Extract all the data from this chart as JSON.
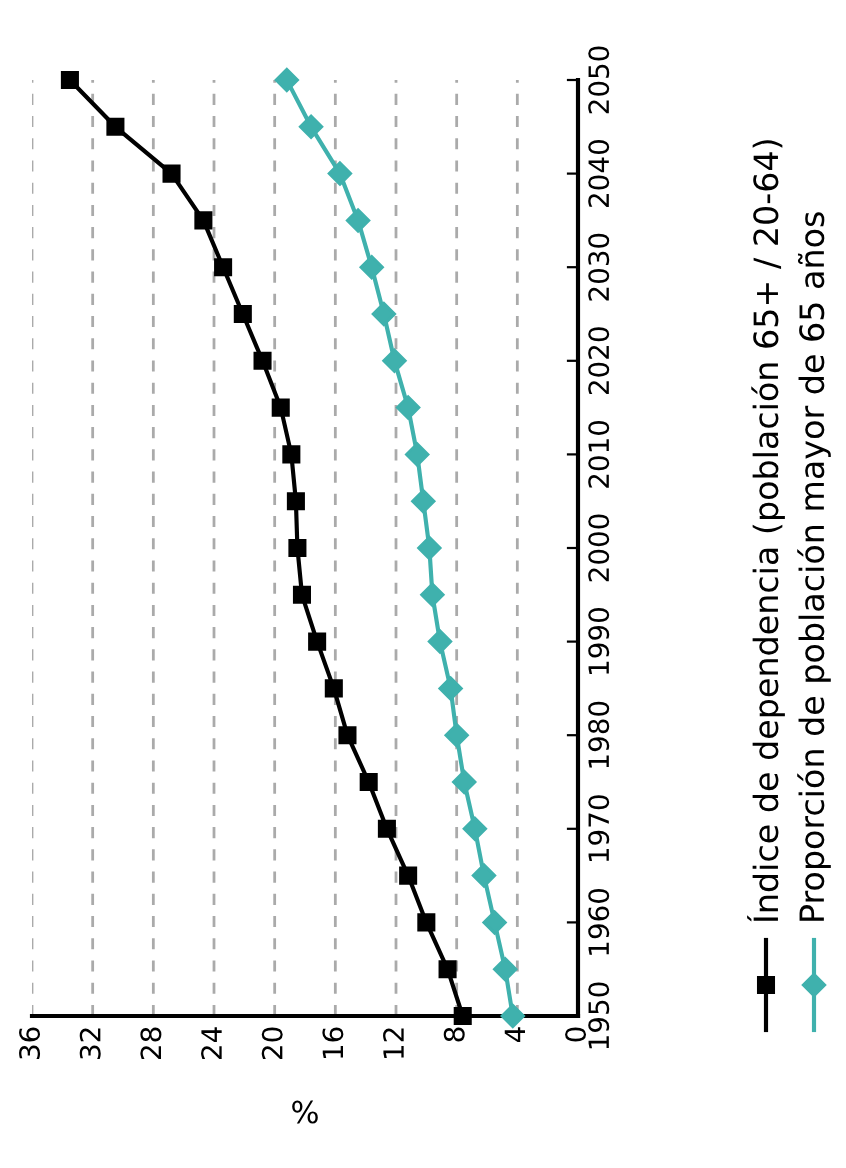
{
  "chart_data": {
    "type": "line",
    "series": [
      {
        "name": "Índice de dependencia (población 65+ / 20-64)",
        "color": "#000000",
        "marker": "square",
        "x": [
          7.6,
          8.6,
          10.0,
          11.2,
          12.6,
          13.8,
          15.2,
          16.1,
          17.2,
          18.2,
          18.5,
          18.6,
          18.9,
          19.6,
          20.8,
          22.1,
          23.4,
          24.7,
          26.8,
          30.5,
          33.5
        ],
        "values": [
          1950,
          1955,
          1960,
          1965,
          1970,
          1975,
          1980,
          1985,
          1990,
          1995,
          2000,
          2005,
          2010,
          2015,
          2020,
          2025,
          2030,
          2035,
          2040,
          2045,
          2050
        ]
      },
      {
        "name": "Proporción de población mayor de 65 años",
        "color": "#3fb1ad",
        "marker": "diamond",
        "x": [
          4.3,
          4.8,
          5.5,
          6.2,
          6.8,
          7.5,
          8.0,
          8.4,
          9.1,
          9.6,
          9.8,
          10.2,
          10.6,
          11.2,
          12.1,
          12.8,
          13.6,
          14.5,
          15.7,
          17.6,
          19.2
        ],
        "values": [
          1950,
          1955,
          1960,
          1965,
          1970,
          1975,
          1980,
          1985,
          1990,
          1995,
          2000,
          2005,
          2010,
          2015,
          2020,
          2025,
          2030,
          2035,
          2040,
          2045,
          2050
        ]
      }
    ],
    "xlim": [
      36,
      0
    ],
    "xticks": [
      36,
      32,
      28,
      24,
      20,
      16,
      12,
      8,
      4,
      0
    ],
    "ylim": [
      1950,
      2050
    ],
    "yticks": [
      1950,
      1960,
      1970,
      1980,
      1990,
      2000,
      2010,
      2020,
      2030,
      2040,
      2050
    ],
    "xlabel": "%",
    "grid": "x",
    "legend": "right",
    "line_style": "solid"
  }
}
